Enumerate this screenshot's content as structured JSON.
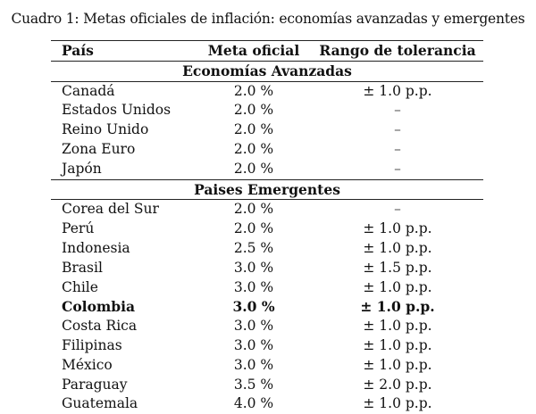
{
  "caption": "Cuadro 1: Metas oficiales de inflación: economías avanzadas y emergentes",
  "table": {
    "headers": [
      "País",
      "Meta oficial",
      "Rango de tolerancia"
    ],
    "groups": [
      {
        "title": "Economías Avanzadas",
        "rows": [
          {
            "country": "Canadá",
            "goal": "2.0 %",
            "range": "± 1.0 p.p.",
            "bold": false
          },
          {
            "country": "Estados Unidos",
            "goal": "2.0 %",
            "range": "–",
            "bold": false
          },
          {
            "country": "Reino Unido",
            "goal": "2.0 %",
            "range": "–",
            "bold": false
          },
          {
            "country": "Zona Euro",
            "goal": "2.0 %",
            "range": "–",
            "bold": false
          },
          {
            "country": "Japón",
            "goal": "2.0 %",
            "range": "–",
            "bold": false
          }
        ]
      },
      {
        "title": "Paises Emergentes",
        "rows": [
          {
            "country": "Corea del Sur",
            "goal": "2.0 %",
            "range": "–",
            "bold": false
          },
          {
            "country": "Perú",
            "goal": "2.0 %",
            "range": "± 1.0 p.p.",
            "bold": false
          },
          {
            "country": "Indonesia",
            "goal": "2.5 %",
            "range": "± 1.0 p.p.",
            "bold": false
          },
          {
            "country": "Brasil",
            "goal": "3.0 %",
            "range": "± 1.5 p.p.",
            "bold": false
          },
          {
            "country": "Chile",
            "goal": "3.0 %",
            "range": "± 1.0 p.p.",
            "bold": false
          },
          {
            "country": "Colombia",
            "goal": "3.0 %",
            "range": "± 1.0 p.p.",
            "bold": true
          },
          {
            "country": "Costa Rica",
            "goal": "3.0 %",
            "range": "± 1.0 p.p.",
            "bold": false
          },
          {
            "country": "Filipinas",
            "goal": "3.0 %",
            "range": "± 1.0 p.p.",
            "bold": false
          },
          {
            "country": "México",
            "goal": "3.0 %",
            "range": "± 1.0 p.p.",
            "bold": false
          },
          {
            "country": "Paraguay",
            "goal": "3.5 %",
            "range": "± 2.0 p.p.",
            "bold": false
          },
          {
            "country": "Guatemala",
            "goal": "4.0 %",
            "range": "± 1.0 p.p.",
            "bold": false
          }
        ]
      }
    ]
  }
}
